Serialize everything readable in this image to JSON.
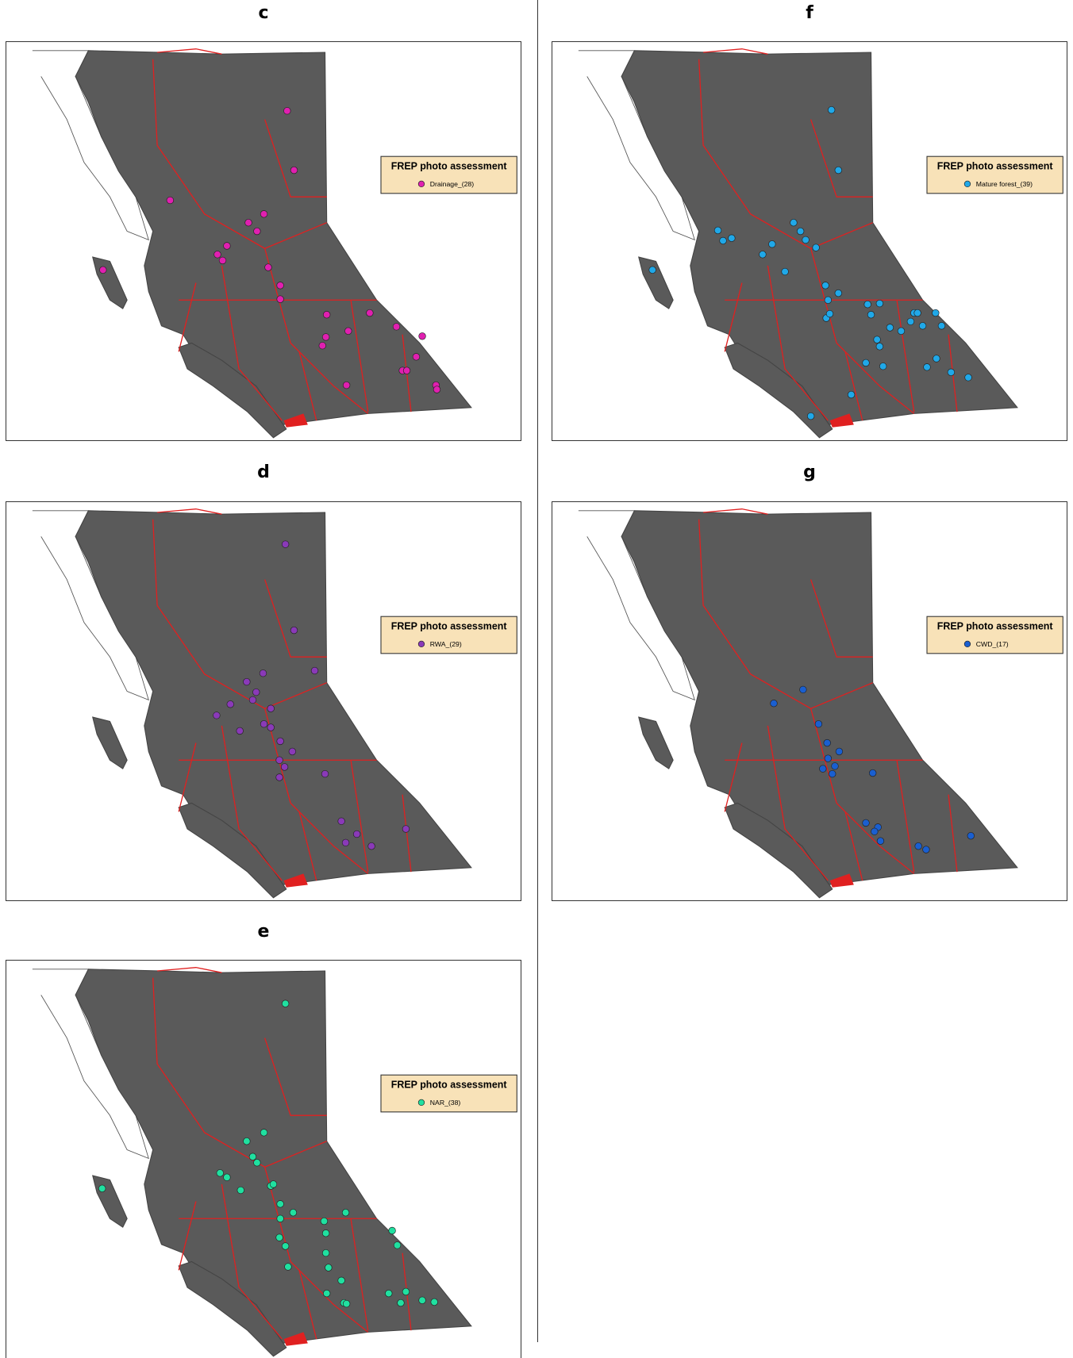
{
  "panels": [
    {
      "label": "c",
      "legend_title": "FREP photo assessment",
      "legend_item": "Drainage_(28)",
      "color": "#e020b0"
    },
    {
      "label": "f",
      "legend_title": "FREP photo assessment",
      "legend_item": "Mature forest_(39)",
      "color": "#20a8e8"
    },
    {
      "label": "d",
      "legend_title": "FREP photo assessment",
      "legend_item": "RWA_(29)",
      "color": "#8a3ab8"
    },
    {
      "label": "g",
      "legend_title": "FREP photo assessment",
      "legend_item": "CWD_(17)",
      "color": "#1a5fd0"
    },
    {
      "label": "e",
      "legend_title": "FREP photo assessment",
      "legend_item": "NAR_(38)",
      "color": "#20e0a0"
    }
  ]
}
